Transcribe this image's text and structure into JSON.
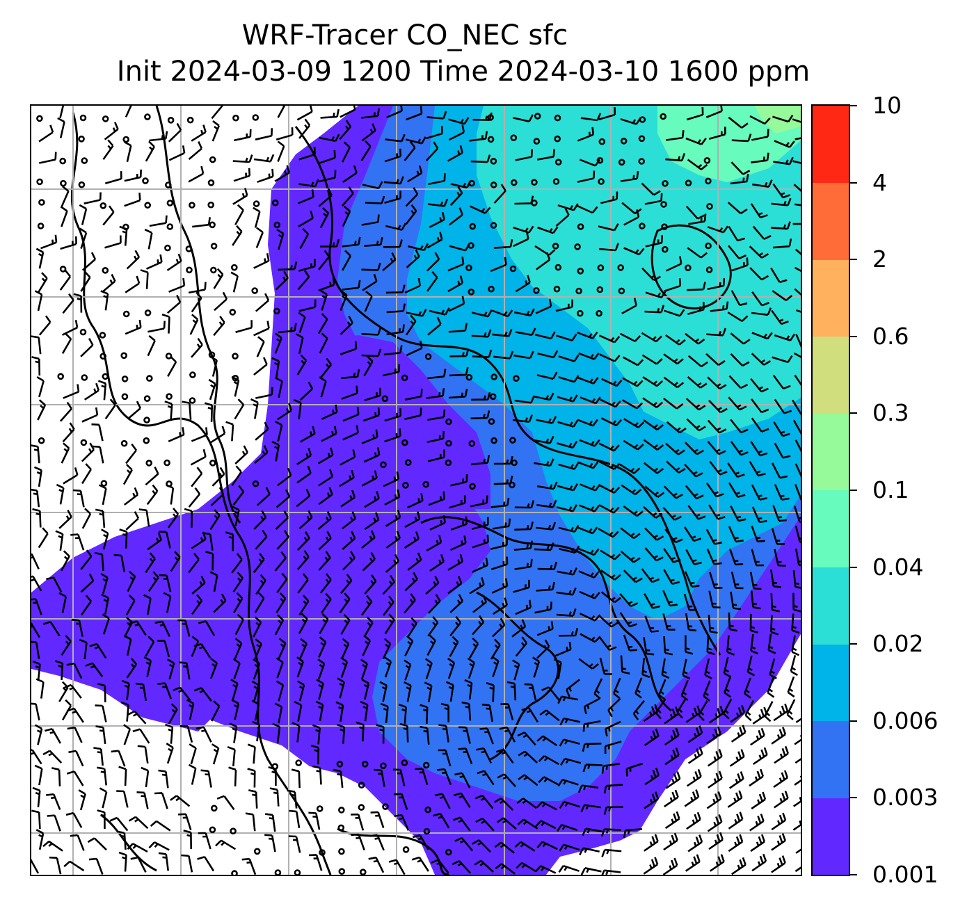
{
  "title": {
    "line1": "WRF-Tracer CO_NEC sfc",
    "line2": "Init 2024-03-09 1200 Time 2024-03-10 1600 ppm"
  },
  "colorbar": {
    "levels": [
      "0.001",
      "0.003",
      "0.006",
      "0.02",
      "0.04",
      "0.1",
      "0.3",
      "0.6",
      "2",
      "4",
      "10"
    ],
    "colors": [
      "#6128ff",
      "#3273f4",
      "#00b3e8",
      "#2cdfd6",
      "#67fbbe",
      "#96f99a",
      "#d1de7e",
      "#ffb15d",
      "#ff6c37",
      "#ff2814"
    ]
  },
  "map": {
    "grid": "on",
    "wind_barbs": "on",
    "coastlines": "on"
  }
}
